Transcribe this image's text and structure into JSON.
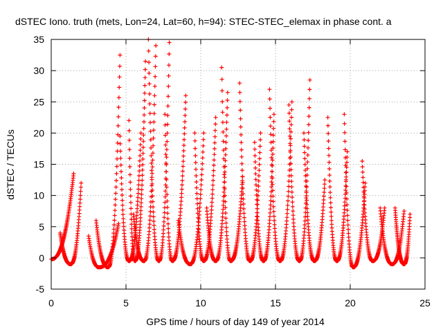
{
  "chart_data": {
    "type": "scatter",
    "title": "dSTEC Iono. truth (mets, Lon=24, Lat=60, h=94): STEC-STEC_elemax in phase cont. a",
    "xlabel": "GPS time / hours of day 149 of year 2014",
    "ylabel": "dSTEC  / TECUs",
    "xlim": [
      0,
      25
    ],
    "ylim": [
      -5,
      35
    ],
    "xticks": [
      "0",
      "5",
      "10",
      "15",
      "20",
      "25"
    ],
    "yticks": [
      "-5",
      "0",
      "5",
      "10",
      "15",
      "20",
      "25",
      "30",
      "35"
    ],
    "grid": true,
    "marker": "+",
    "color": "#ff0000",
    "passes": [
      {
        "start": 0.0,
        "peak": 0.0,
        "end": 1.5,
        "min": -0.2,
        "max": 6.0,
        "rise": 13.5
      },
      {
        "start": 0.6,
        "peak": 1.3,
        "end": 2.0,
        "min": -1.0,
        "max": 4.0,
        "rise": 12.0
      },
      {
        "start": 2.5,
        "peak": 3.2,
        "end": 4.5,
        "min": -1.5,
        "max": 3.5,
        "rise": 5.5
      },
      {
        "start": 3.0,
        "peak": 3.8,
        "end": 4.6,
        "min": -1.5,
        "max": 6.0,
        "rise": 32.5
      },
      {
        "start": 4.6,
        "peak": 5.2,
        "end": 6.0,
        "min": -0.5,
        "max": 19.5,
        "rise": 20.0
      },
      {
        "start": 5.2,
        "peak": 5.6,
        "end": 6.3,
        "min": -0.5,
        "max": 22.0,
        "rise": 31.5
      },
      {
        "start": 5.5,
        "peak": 6.2,
        "end": 7.0,
        "min": -0.5,
        "max": 7.0,
        "rise": 34.0
      },
      {
        "start": 6.5,
        "peak": 7.2,
        "end": 7.9,
        "min": -0.5,
        "max": 35.0,
        "rise": 34.5
      },
      {
        "start": 7.6,
        "peak": 8.1,
        "end": 9.0,
        "min": -0.5,
        "max": 23.0,
        "rise": 26.0
      },
      {
        "start": 8.5,
        "peak": 9.3,
        "end": 10.2,
        "min": -1.0,
        "max": 6.0,
        "rise": 20.0
      },
      {
        "start": 9.6,
        "peak": 10.2,
        "end": 11.0,
        "min": -0.5,
        "max": 20.0,
        "rise": 22.5
      },
      {
        "start": 10.4,
        "peak": 11.0,
        "end": 11.8,
        "min": -0.5,
        "max": 8.0,
        "rise": 26.5
      },
      {
        "start": 11.4,
        "peak": 12.0,
        "end": 12.8,
        "min": -0.5,
        "max": 30.5,
        "rise": 13.0
      },
      {
        "start": 12.6,
        "peak": 13.3,
        "end": 14.0,
        "min": -0.5,
        "max": 28.0,
        "rise": 20.0
      },
      {
        "start": 13.6,
        "peak": 14.2,
        "end": 14.9,
        "min": -0.5,
        "max": 18.5,
        "rise": 23.0
      },
      {
        "start": 14.6,
        "peak": 15.3,
        "end": 16.1,
        "min": -0.5,
        "max": 27.0,
        "rise": 25.0
      },
      {
        "start": 15.9,
        "peak": 16.6,
        "end": 17.3,
        "min": -0.5,
        "max": 24.5,
        "rise": 28.5
      },
      {
        "start": 16.9,
        "peak": 17.6,
        "end": 18.3,
        "min": -0.5,
        "max": 20.0,
        "rise": 12.5
      },
      {
        "start": 18.5,
        "peak": 19.1,
        "end": 19.8,
        "min": -0.5,
        "max": 22.5,
        "rise": 17.0
      },
      {
        "start": 19.6,
        "peak": 20.2,
        "end": 21.0,
        "min": -1.5,
        "max": 23.0,
        "rise": 12.0
      },
      {
        "start": 20.8,
        "peak": 21.5,
        "end": 22.3,
        "min": -0.5,
        "max": 15.5,
        "rise": 8.0
      },
      {
        "start": 22.0,
        "peak": 22.8,
        "end": 23.6,
        "min": -1.0,
        "max": 8.0,
        "rise": 7.5
      },
      {
        "start": 23.0,
        "peak": 23.6,
        "end": 24.0,
        "min": -1.0,
        "max": 8.0,
        "rise": 7.0
      }
    ]
  }
}
